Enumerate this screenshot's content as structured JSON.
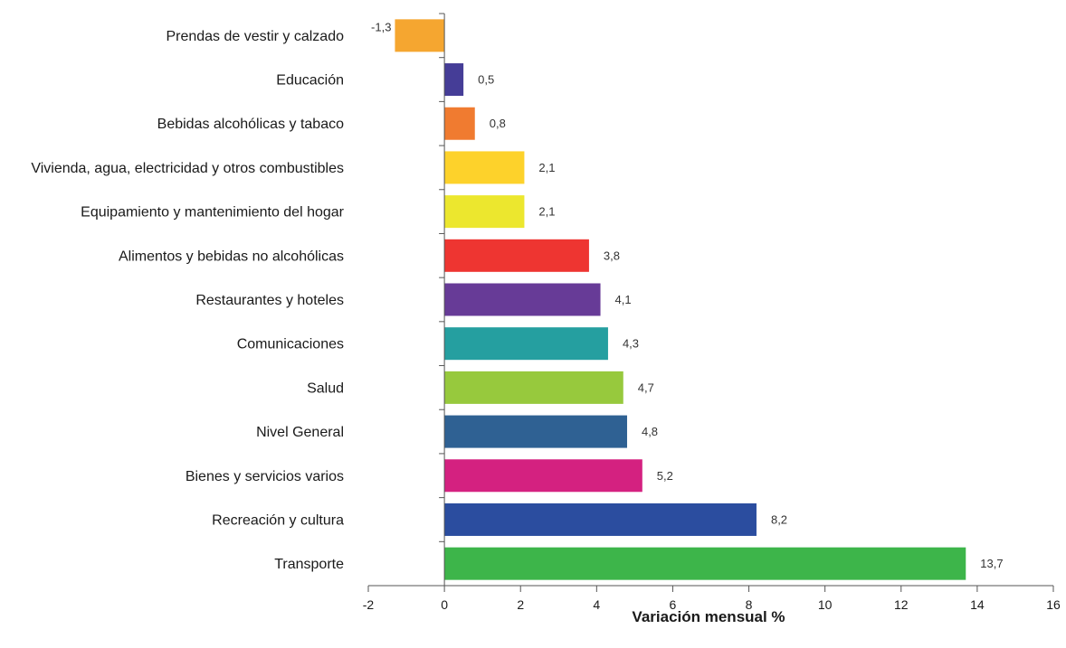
{
  "chart_data": {
    "type": "bar",
    "orientation": "horizontal",
    "categories": [
      "Prendas de vestir y calzado",
      "Educación",
      "Bebidas alcohólicas y tabaco",
      "Vivienda, agua, electricidad y otros combustibles",
      "Equipamiento y mantenimiento del hogar",
      "Alimentos y bebidas no alcohólicas",
      "Restaurantes y hoteles",
      "Comunicaciones",
      "Salud",
      "Nivel General",
      "Bienes y servicios varios",
      "Recreación y cultura",
      "Transporte"
    ],
    "values": [
      -1.3,
      0.5,
      0.8,
      2.1,
      2.1,
      3.8,
      4.1,
      4.3,
      4.7,
      4.8,
      5.2,
      8.2,
      13.7
    ],
    "value_labels": [
      "-1,3",
      "0,5",
      "0,8",
      "2,1",
      "2,1",
      "3,8",
      "4,1",
      "4,3",
      "4,7",
      "4,8",
      "5,2",
      "8,2",
      "13,7"
    ],
    "colors": [
      "#f5a630",
      "#453d97",
      "#f07b30",
      "#fdd22b",
      "#ece72e",
      "#ee3531",
      "#673b97",
      "#259fa0",
      "#97c93d",
      "#2f6193",
      "#d42180",
      "#2b4d9f",
      "#3db54a"
    ],
    "xlim": [
      -2,
      16
    ],
    "xticks": [
      -2,
      0,
      2,
      4,
      6,
      8,
      10,
      12,
      14,
      16
    ],
    "xtick_labels": [
      "-2",
      "0",
      "2",
      "4",
      "6",
      "8",
      "10",
      "12",
      "14",
      "16"
    ],
    "xlabel": "Variación mensual %",
    "ylabel": "",
    "title": "",
    "grid": false,
    "legend": "none"
  }
}
